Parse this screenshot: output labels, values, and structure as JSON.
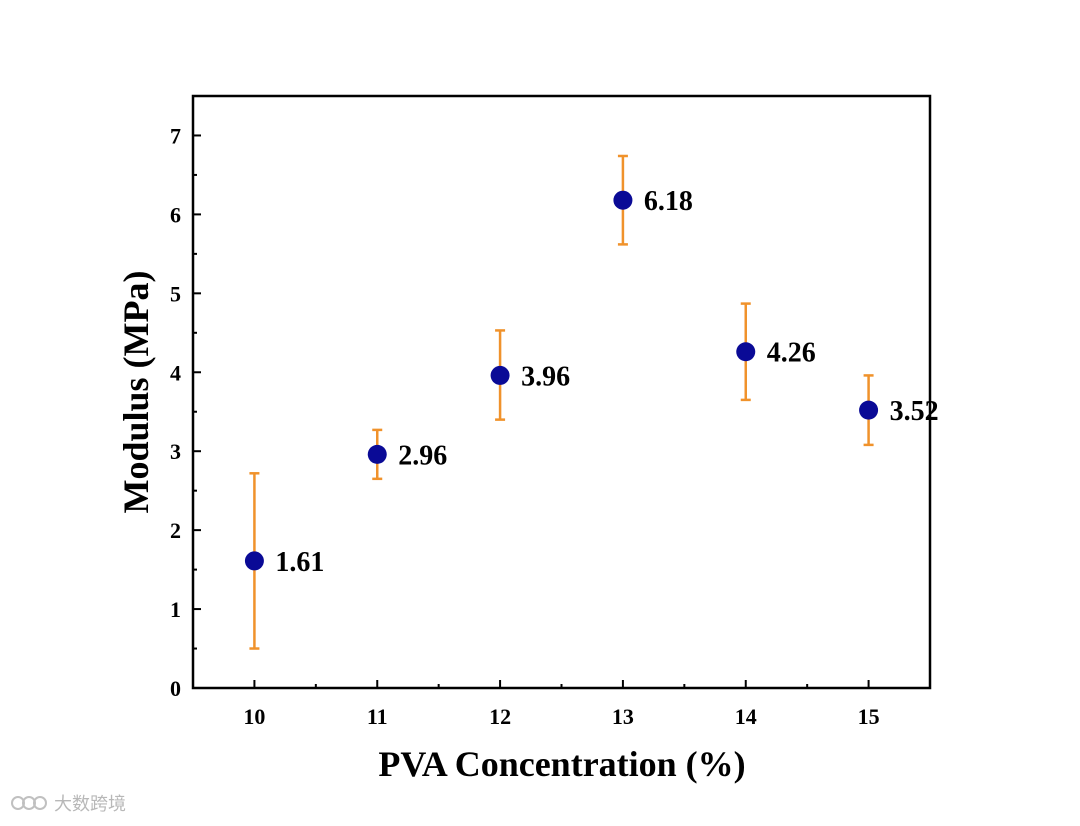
{
  "chart_data": {
    "type": "scatter",
    "title": "",
    "xlabel": "PVA Concentration (%)",
    "ylabel": "Modulus (MPa)",
    "xlim": [
      9.5,
      15.5
    ],
    "ylim": [
      0,
      7.5
    ],
    "x_ticks": [
      10,
      11,
      12,
      13,
      14,
      15
    ],
    "y_ticks": [
      0,
      1,
      2,
      3,
      4,
      5,
      6,
      7
    ],
    "grid": false,
    "series": [
      {
        "name": "Modulus",
        "x": [
          10,
          11,
          12,
          13,
          14,
          15
        ],
        "y": [
          1.61,
          2.96,
          3.96,
          6.18,
          4.26,
          3.52
        ],
        "error_low": [
          0.5,
          2.65,
          3.4,
          5.62,
          3.65,
          3.08
        ],
        "error_high": [
          2.72,
          3.27,
          4.53,
          6.74,
          4.87,
          3.96
        ],
        "labels": [
          "1.61",
          "2.96",
          "3.96",
          "6.18",
          "4.26",
          "3.52"
        ],
        "marker_color": "#0a0a96",
        "error_color": "#f0922b"
      }
    ]
  },
  "watermark": {
    "text": "大数跨境"
  }
}
